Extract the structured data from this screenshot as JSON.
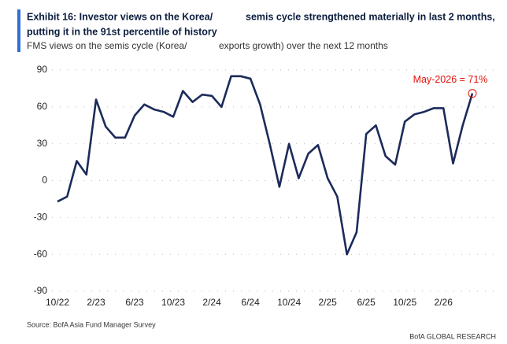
{
  "chart_data": {
    "type": "line",
    "title": [
      "Exhibit 16: Investor views on the Korea/",
      "semis cycle strengthened materially in last 2 months,",
      "putting it in the 91st percentile of history"
    ],
    "subtitle": [
      "FMS views on the semis cycle (Korea/",
      "exports growth) over the next 12 months"
    ],
    "categories": [
      "10/22",
      null,
      null,
      null,
      "2/23",
      null,
      null,
      null,
      "6/23",
      null,
      null,
      null,
      "10/23",
      null,
      null,
      null,
      "2/24",
      null,
      null,
      null,
      "6/24",
      null,
      null,
      null,
      "10/24",
      null,
      null,
      null,
      "2/25",
      null,
      null,
      null,
      "6/25",
      null,
      null,
      null,
      "10/25",
      null,
      null,
      null,
      "2/26",
      null,
      null,
      null
    ],
    "series": [
      {
        "color": "#1c2b5a",
        "values": [
          -17,
          -13,
          16,
          5,
          66,
          44,
          35,
          35,
          53,
          62,
          58,
          56,
          52,
          73,
          64,
          70,
          69,
          60,
          85,
          85,
          83,
          62,
          30,
          -5,
          30,
          2,
          22,
          29,
          2,
          -13,
          -60,
          -42,
          38,
          45,
          20,
          13,
          48,
          54,
          56,
          59,
          59,
          14,
          45,
          71
        ]
      }
    ],
    "ylim": [
      -90,
      90
    ],
    "yticks": [
      -90,
      -60,
      -30,
      0,
      30,
      60,
      90
    ],
    "grid": true,
    "annotation": "May-2026 = 71%",
    "annotation_color": "#e3120b",
    "source": "Source: BofA Asia Fund Manager Survey",
    "brand": "BofA GLOBAL RESEARCH"
  }
}
